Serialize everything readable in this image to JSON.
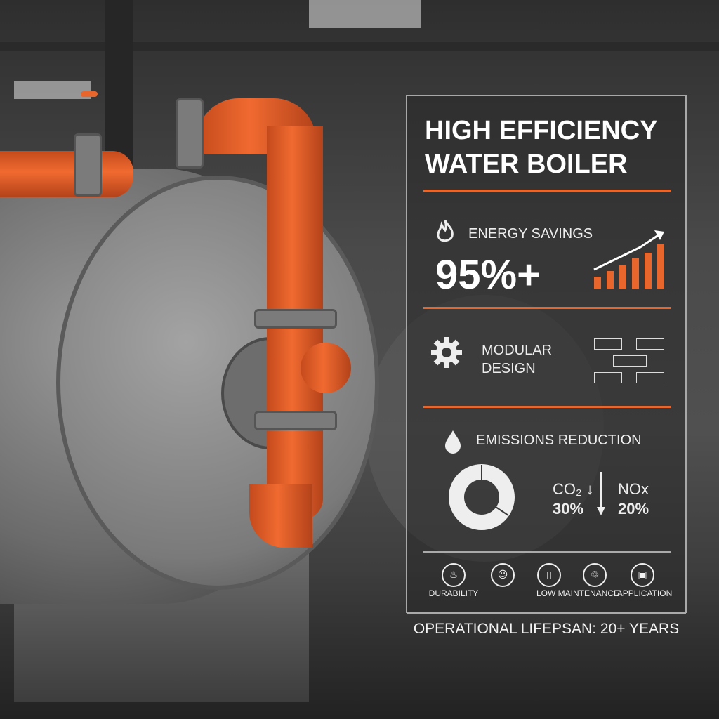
{
  "infographic": {
    "title_line1": "HIGH EFFICIENCY",
    "title_line2": "WATER BOILER",
    "accent_color": "#e8652b",
    "energy": {
      "icon": "flame-icon",
      "label": "ENERGY SAVINGS",
      "value": "95%+",
      "chart_icon": "rising-bar-chart-icon"
    },
    "modular": {
      "icon": "gear-icon",
      "label_line1": "MODULAR",
      "label_line2": "DESIGN",
      "diagram_icon": "module-diagram-icon"
    },
    "emissions": {
      "icon": "water-drop-icon",
      "label": "EMISSIONS REDUCTION",
      "co2_label": "CO₂",
      "co2_value": "30%",
      "nox_label": "NOx",
      "nox_value": "20%"
    },
    "features": [
      {
        "icon": "durability-icon",
        "label": "DURABILITY"
      },
      {
        "icon": "badge-icon",
        "label": ""
      },
      {
        "icon": "document-icon",
        "label": "LOW MAINTENANCE"
      },
      {
        "icon": "recycle-icon",
        "label": ""
      },
      {
        "icon": "application-icon",
        "label": "APPLICATION"
      }
    ],
    "footer": "OPERATIONAL LIFEPSAN: 20+ YEARS"
  }
}
